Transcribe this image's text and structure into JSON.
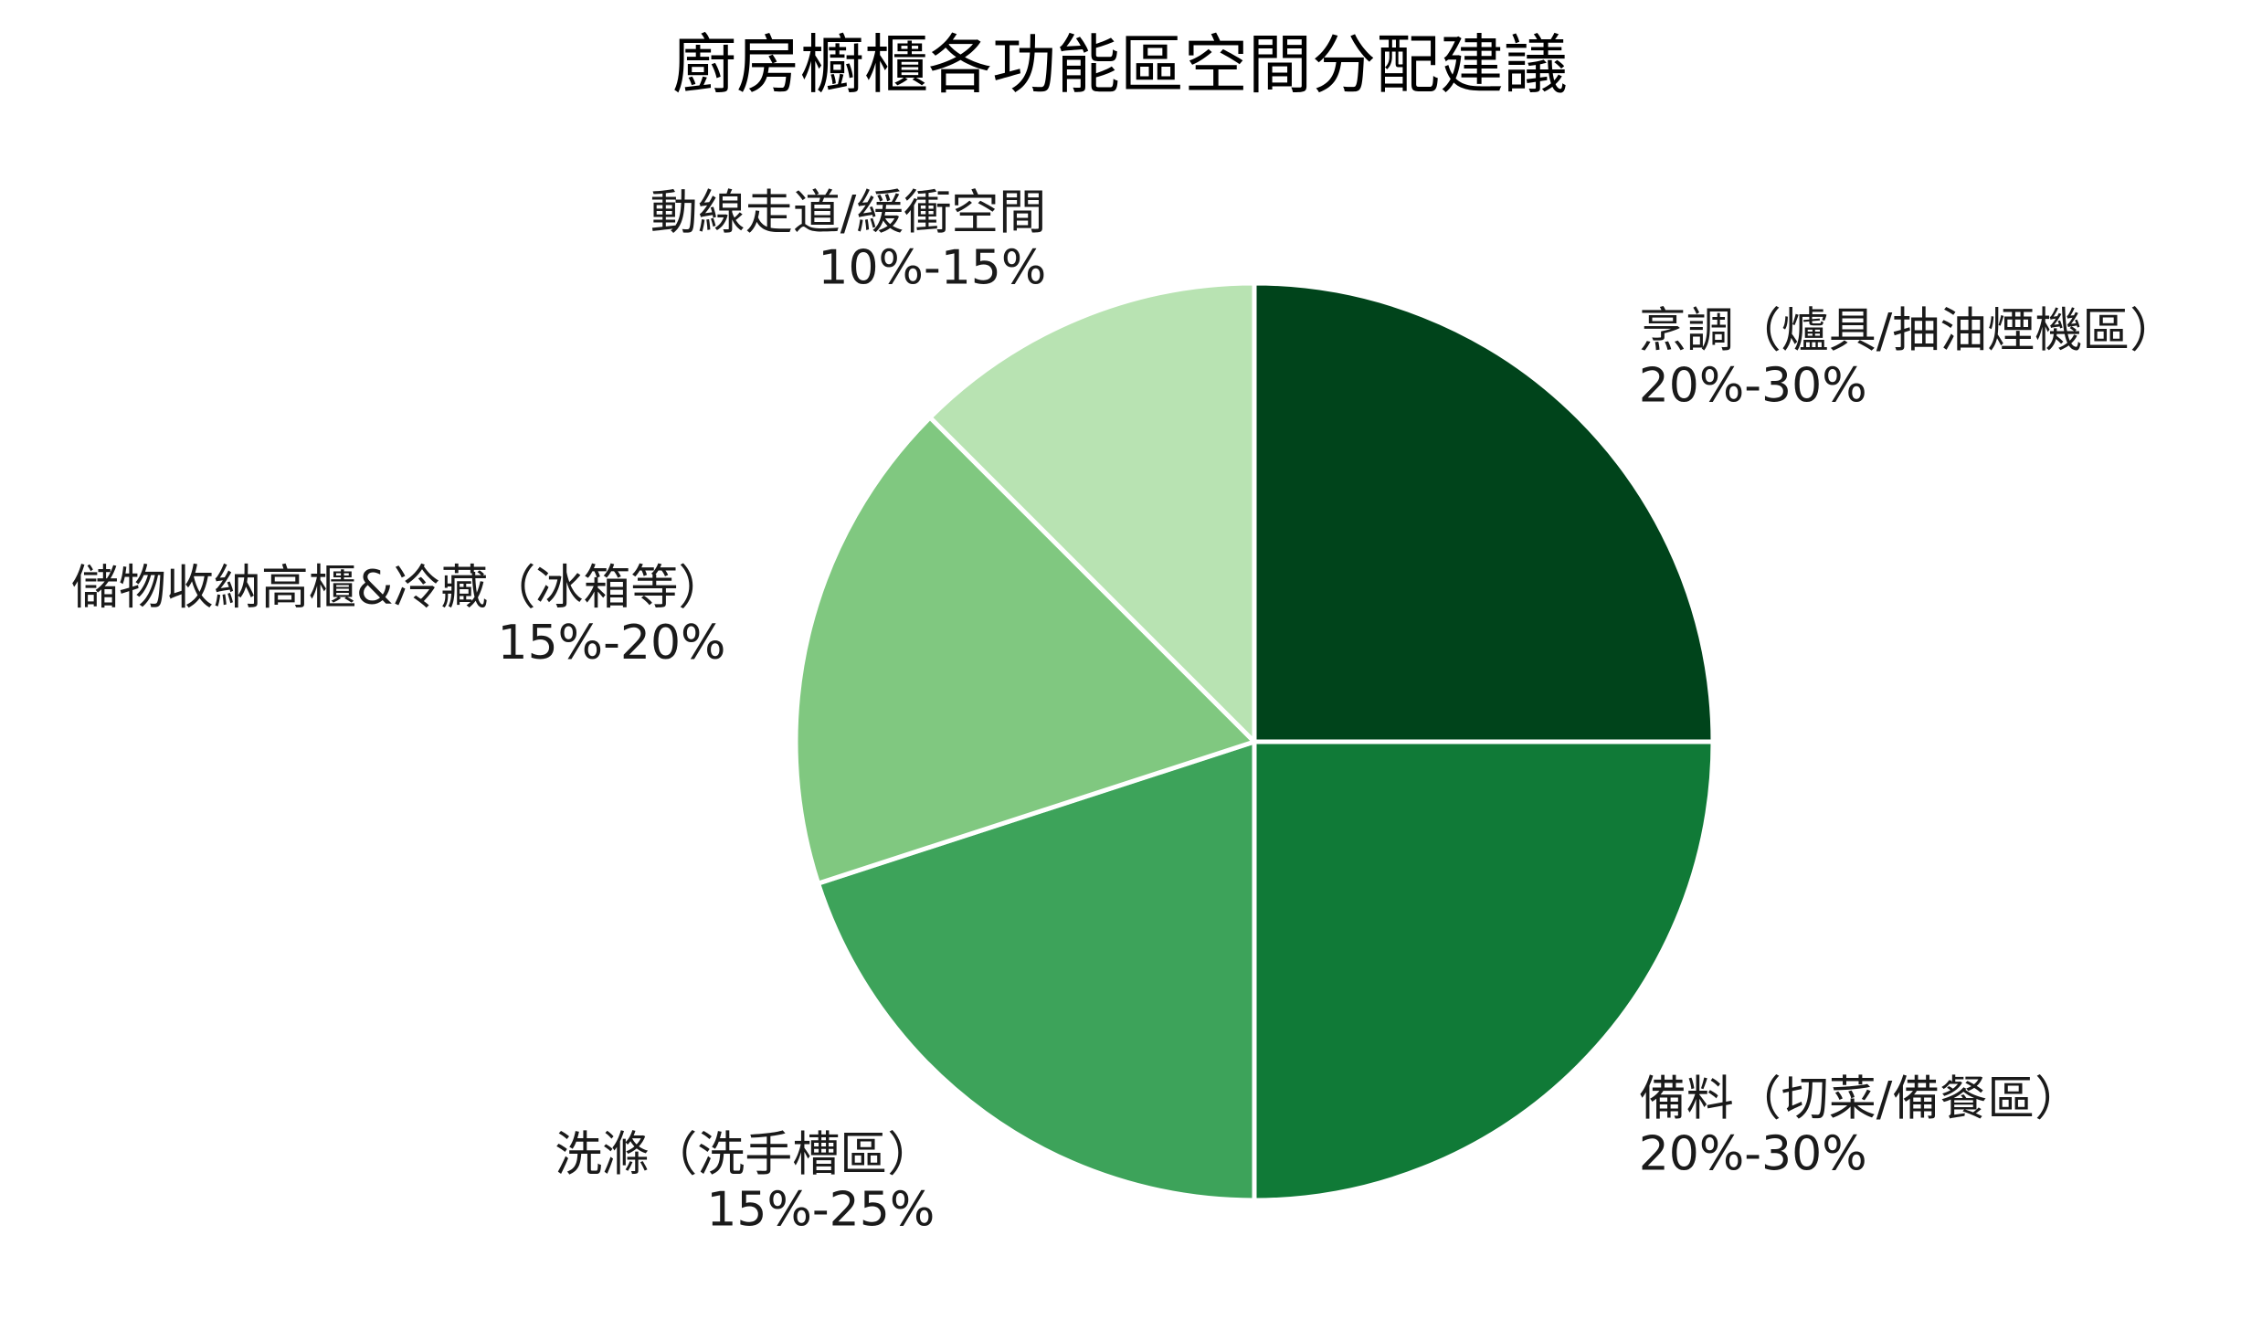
{
  "chart_data": {
    "type": "pie",
    "title": "廚房櫥櫃各功能區空間分配建議",
    "start_angle_deg": 90,
    "direction": "clockwise",
    "slices": [
      {
        "label": "烹調（爐具/抽油煙機區）",
        "range": "20%-30%",
        "value": 25,
        "color": "#00441b"
      },
      {
        "label": "備料（切菜/備餐區）",
        "range": "20%-30%",
        "value": 25,
        "color": "#107a37"
      },
      {
        "label": "洗滌（洗手槽區）",
        "range": "15%-25%",
        "value": 20,
        "color": "#3da35a"
      },
      {
        "label": "儲物收納高櫃&冷藏（冰箱等）",
        "range": "15%-20%",
        "value": 17.5,
        "color": "#80c880"
      },
      {
        "label": "動線走道/緩衝空間",
        "range": "10%-15%",
        "value": 12.5,
        "color": "#b8e3b2"
      }
    ]
  }
}
